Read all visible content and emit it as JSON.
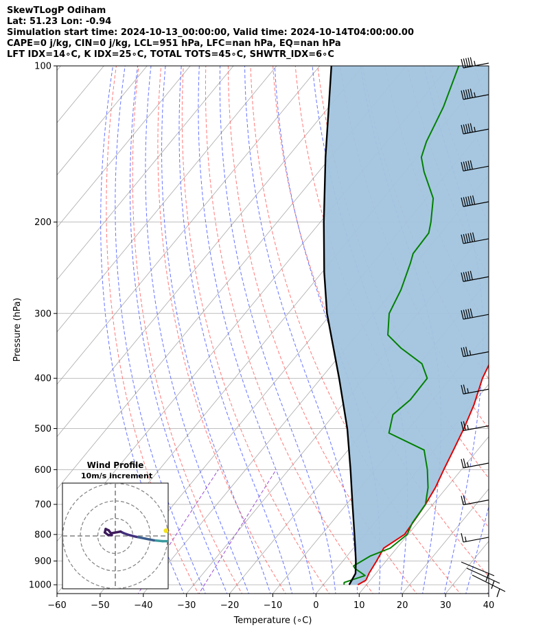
{
  "header": {
    "title": "SkewTLogP Odiham",
    "location": "Lat: 51.23   Lon: -0.94",
    "times": "Simulation start time: 2024-10-13_00:00:00, Valid time: 2024-10-14T04:00:00.00",
    "indices1": "CAPE=0 j/kg, CIN=0 j/kg, LCL=951 hPa, LFC=nan hPa, EQ=nan hPa",
    "indices2": "LFT IDX=14∘C, K IDX=25∘C, TOTAL TOTS=45∘C, SHWTR_IDX=6∘C"
  },
  "chart_data": {
    "type": "line",
    "subtype": "skew-t log-p",
    "xlabel": "Temperature (∘C)",
    "ylabel": "Pressure (hPa)",
    "xlim": [
      -60,
      40
    ],
    "ylim": [
      1040,
      100
    ],
    "y_scale": "log",
    "x_ticks": [
      "−60",
      "−50",
      "−40",
      "−30",
      "−20",
      "−10",
      "0",
      "10",
      "20",
      "30",
      "40"
    ],
    "y_ticks": [
      "100",
      "200",
      "300",
      "400",
      "500",
      "600",
      "700",
      "800",
      "900",
      "1000"
    ],
    "grid": true,
    "colors": {
      "temperature": "#e00000",
      "dewpoint": "#008000",
      "parcel": "#000000",
      "shade": "#a2c4de",
      "dry_adiabat": "#ff6060",
      "moist_adiabat": "#4a5aff",
      "mixing_ratio": "#9a4ad0",
      "isotherm": "#a9a9a9"
    },
    "series": [
      {
        "key": "temperature",
        "points": [
          [
            1000,
            8.0
          ],
          [
            980,
            9.0
          ],
          [
            950,
            8.4
          ],
          [
            900,
            7.8
          ],
          [
            850,
            7.0
          ],
          [
            800,
            9.2
          ],
          [
            750,
            8.8
          ],
          [
            700,
            8.3
          ],
          [
            650,
            7.4
          ],
          [
            600,
            5.9
          ],
          [
            550,
            4.4
          ],
          [
            500,
            2.7
          ],
          [
            450,
            0.5
          ],
          [
            400,
            -2.6
          ],
          [
            350,
            -5.0
          ],
          [
            300,
            -5.6
          ],
          [
            280,
            -5.8
          ],
          [
            250,
            -5.2
          ],
          [
            230,
            -3.8
          ],
          [
            200,
            -1.4
          ],
          [
            180,
            -0.4
          ],
          [
            160,
            -0.6
          ],
          [
            140,
            -1.4
          ],
          [
            120,
            -1.6
          ],
          [
            110,
            -1.3
          ],
          [
            100,
            -1.6
          ]
        ]
      },
      {
        "key": "dewpoint",
        "points": [
          [
            1000,
            4.8
          ],
          [
            990,
            4.4
          ],
          [
            960,
            7.9
          ],
          [
            930,
            4.2
          ],
          [
            920,
            3.4
          ],
          [
            880,
            5.4
          ],
          [
            850,
            8.5
          ],
          [
            800,
            9.8
          ],
          [
            760,
            8.8
          ],
          [
            700,
            8.3
          ],
          [
            650,
            5.7
          ],
          [
            600,
            2.1
          ],
          [
            550,
            -2.4
          ],
          [
            510,
            -13.8
          ],
          [
            470,
            -16.4
          ],
          [
            440,
            -15.2
          ],
          [
            400,
            -15.4
          ],
          [
            375,
            -19.4
          ],
          [
            350,
            -27.2
          ],
          [
            330,
            -32.8
          ],
          [
            300,
            -36.6
          ],
          [
            270,
            -38.4
          ],
          [
            240,
            -41.3
          ],
          [
            230,
            -42.5
          ],
          [
            210,
            -42.8
          ],
          [
            200,
            -44.4
          ],
          [
            180,
            -48.4
          ],
          [
            160,
            -55.6
          ],
          [
            150,
            -59.0
          ],
          [
            140,
            -60.8
          ],
          [
            120,
            -63.5
          ],
          [
            100,
            -67.8
          ]
        ]
      },
      {
        "key": "parcel",
        "points": [
          [
            1000,
            6.0
          ],
          [
            951,
            5.3
          ],
          [
            900,
            3.0
          ],
          [
            850,
            0.4
          ],
          [
            800,
            -2.4
          ],
          [
            700,
            -8.6
          ],
          [
            600,
            -15.7
          ],
          [
            500,
            -24.3
          ],
          [
            400,
            -35.8
          ],
          [
            300,
            -51.0
          ],
          [
            250,
            -59.5
          ],
          [
            200,
            -69.2
          ],
          [
            150,
            -81.2
          ],
          [
            100,
            -97.3
          ]
        ]
      }
    ],
    "wind_barbs": [
      {
        "p": 100,
        "kt": 55
      },
      {
        "p": 115,
        "kt": 55
      },
      {
        "p": 134,
        "kt": 55
      },
      {
        "p": 158,
        "kt": 50
      },
      {
        "p": 185,
        "kt": 60
      },
      {
        "p": 218,
        "kt": 60
      },
      {
        "p": 258,
        "kt": 50
      },
      {
        "p": 305,
        "kt": 50
      },
      {
        "p": 360,
        "kt": 35
      },
      {
        "p": 425,
        "kt": 25
      },
      {
        "p": 500,
        "kt": 25
      },
      {
        "p": 590,
        "kt": 25
      },
      {
        "p": 695,
        "kt": 20
      },
      {
        "p": 820,
        "kt": 15
      }
    ],
    "hodograph": {
      "title": "Wind Profile",
      "subtitle": "10m/s increment",
      "rings_ms": [
        10,
        20,
        30
      ],
      "points": [
        [
          33.5,
          -3.0
        ],
        [
          27.0,
          -3.0
        ],
        [
          22.0,
          -2.5
        ],
        [
          17.0,
          -1.5
        ],
        [
          12.0,
          -0.5
        ],
        [
          8.0,
          0.5
        ],
        [
          5.0,
          1.5
        ],
        [
          3.0,
          2.5
        ],
        [
          -2.5,
          1.5
        ],
        [
          -3.8,
          3.2
        ],
        [
          -5.5,
          4.0
        ],
        [
          -6.0,
          2.0
        ],
        [
          -4.0,
          0.5
        ],
        [
          -2.0,
          0.5
        ]
      ],
      "colors": [
        "#3a9a9e",
        "#3a9a9e",
        "#3b5d8c",
        "#3b5d8c",
        "#42307c",
        "#42307c",
        "#42307c",
        "#3d1c5c",
        "#3d1c5c",
        "#3d1c5c",
        "#3d1c5c",
        "#3d1c5c",
        "#3d1c5c",
        "#3d1c5c"
      ],
      "marker": [
        9.5,
        1.0
      ],
      "marker_color": "#f2e41a"
    }
  }
}
